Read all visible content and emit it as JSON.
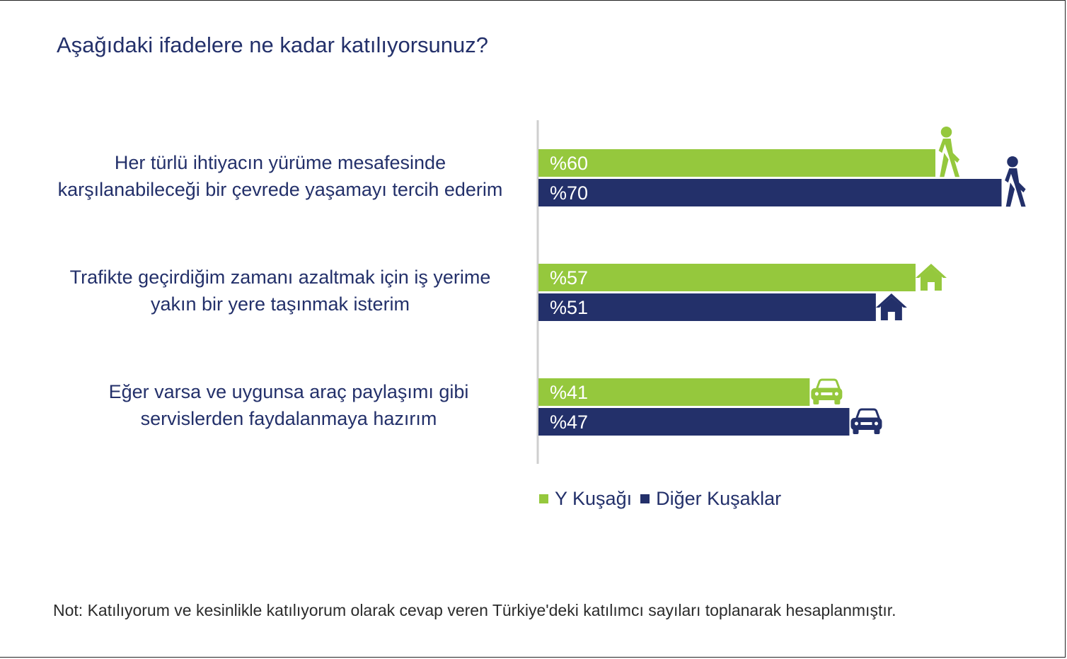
{
  "title": "Aşağıdaki ifadelere ne kadar katılıyorsunuz?",
  "note": "Not: Katılıyorum ve kesinlikle katılıyorum olarak cevap veren Türkiye'deki katılımcı sayıları toplanarak hesaplanmıştır.",
  "colors": {
    "green": "#95c83d",
    "navy": "#23306a",
    "axis": "#cfcfcf"
  },
  "legend": {
    "series0": "Y Kuşağı",
    "series1": "Diğer Kuşaklar"
  },
  "rows": [
    {
      "label_lines": [
        "Her türlü ihtiyacın yürüme mesafesinde",
        "karşılanabileceği bir çevrede yaşamayı tercih ederim"
      ],
      "icon": "walking-person-icon",
      "labels": [
        "%60",
        "%70"
      ]
    },
    {
      "label_lines": [
        "Trafikte geçirdiğim zamanı azaltmak için iş yerime",
        "yakın bir yere taşınmak isterim"
      ],
      "icon": "house-icon",
      "labels": [
        "%57",
        "%51"
      ]
    },
    {
      "label_lines": [
        "Eğer varsa ve uygunsa araç paylaşımı gibi",
        "servislerden faydalanmaya hazırım"
      ],
      "icon": "car-icon",
      "labels": [
        "%41",
        "%47"
      ]
    }
  ],
  "chart_data": {
    "type": "bar",
    "orientation": "horizontal",
    "title": "Aşağıdaki ifadelere ne kadar katılıyorsunuz?",
    "categories": [
      "Her türlü ihtiyacın yürüme mesafesinde karşılanabileceği bir çevrede yaşamayı tercih ederim",
      "Trafikte geçirdiğim zamanı azaltmak için iş yerime yakın bir yere taşınmak isterim",
      "Eğer varsa ve uygunsa araç paylaşımı gibi servislerden faydalanmaya hazırım"
    ],
    "series": [
      {
        "name": "Y Kuşağı",
        "values": [
          60,
          57,
          41
        ]
      },
      {
        "name": "Diğer Kuşaklar",
        "values": [
          70,
          51,
          47
        ]
      }
    ],
    "units": "%",
    "legend": "bottom",
    "grid": false
  }
}
